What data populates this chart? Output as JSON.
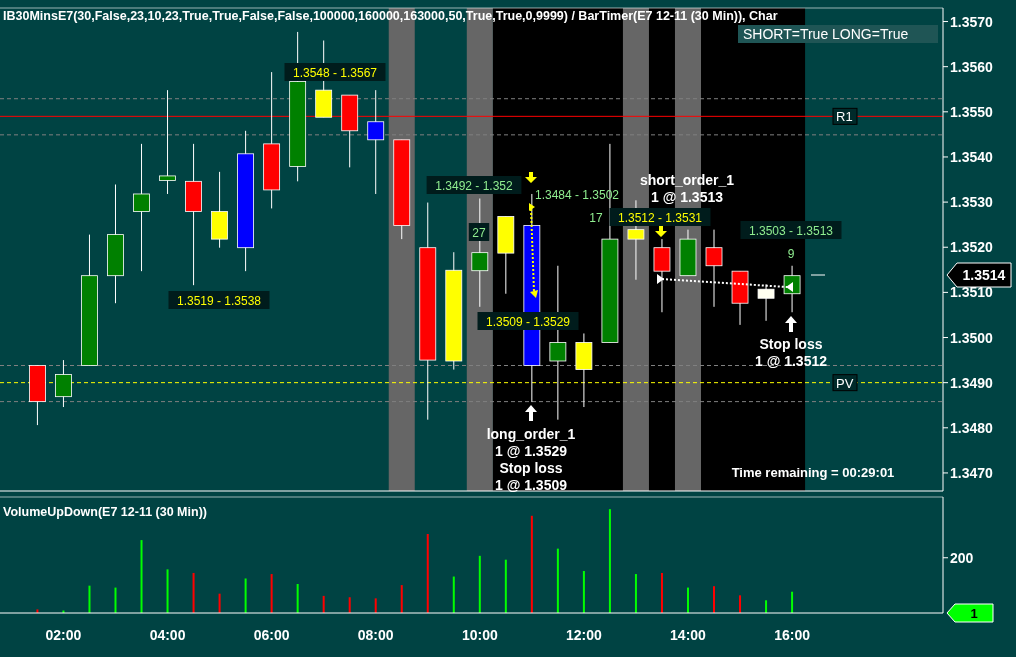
{
  "chart_data": [
    {
      "type": "candlestick",
      "title": "IB30MinsE7(30,False,23,10,23,True,True,False,False,100000,160000,163000,50,True,True,0,9999)  /  BarTimer(E7  12-11  (30 Min)),  Char",
      "x": [
        1.5,
        2,
        2.5,
        3,
        3.5,
        4,
        4.5,
        5,
        5.5,
        6,
        6.5,
        7,
        7.5,
        8,
        8.5,
        9,
        9.5,
        10,
        10.5,
        11,
        11.5,
        12,
        12.5,
        13,
        13.5,
        14,
        14.5,
        15,
        15.5,
        16
      ],
      "ohlc": [
        [
          1.34938,
          1.34938,
          1.34806,
          1.34858
        ],
        [
          1.34869,
          1.3495,
          1.34846,
          1.34918
        ],
        [
          1.34938,
          1.35228,
          1.34938,
          1.35137
        ],
        [
          1.35137,
          1.35339,
          1.35076,
          1.35228
        ],
        [
          1.35279,
          1.35429,
          1.35147,
          1.35318
        ],
        [
          1.35348,
          1.35548,
          1.35318,
          1.35358
        ],
        [
          1.35346,
          1.35429,
          1.35116,
          1.35279
        ],
        [
          1.35279,
          1.35367,
          1.35199,
          1.35218
        ],
        [
          1.35199,
          1.35458,
          1.35147,
          1.35407
        ],
        [
          1.35429,
          1.35588,
          1.35286,
          1.35327
        ],
        [
          1.35379,
          1.35677,
          1.35346,
          1.35567
        ],
        [
          1.35488,
          1.35658,
          1.35488,
          1.35548
        ],
        [
          1.35537,
          1.35537,
          1.35377,
          1.35458
        ],
        [
          1.35478,
          1.35548,
          1.35318,
          1.35438
        ],
        [
          1.35438,
          1.35438,
          1.35218,
          1.35248
        ],
        [
          1.35199,
          1.35299,
          1.34818,
          1.3495
        ],
        [
          1.35149,
          1.35189,
          1.34929,
          1.34948
        ],
        [
          1.35148,
          1.35308,
          1.35068,
          1.35188
        ],
        [
          1.35187,
          1.35268,
          1.35097,
          1.35268
        ],
        [
          1.35248,
          1.35318,
          1.34857,
          1.34938
        ],
        [
          1.34948,
          1.35159,
          1.34818,
          1.34989
        ],
        [
          1.34989,
          1.35009,
          1.34846,
          1.34929
        ],
        [
          1.34989,
          1.35429,
          1.34989,
          1.35218
        ],
        [
          1.35218,
          1.35304,
          1.35128,
          1.35239
        ],
        [
          1.35199,
          1.35218,
          1.35056,
          1.35147
        ],
        [
          1.35137,
          1.35239,
          1.35137,
          1.35218
        ],
        [
          1.35199,
          1.35239,
          1.35068,
          1.35159
        ],
        [
          1.35147,
          1.35147,
          1.35028,
          1.35076
        ],
        [
          1.35087,
          1.35118,
          1.35037,
          1.35107
        ],
        [
          1.35097,
          1.35159,
          1.35056,
          1.35137
        ]
      ],
      "colors": [
        "#ff0000",
        "#008000",
        "#008000",
        "#008000",
        "#008000",
        "#008000",
        "#ff0000",
        "#ffff00",
        "#0000ff",
        "#ff0000",
        "#008000",
        "#ffff00",
        "#ff0000",
        "#0000ff",
        "#ff0000",
        "#ff0000",
        "#ffff00",
        "#008000",
        "#ffff00",
        "#0000ff",
        "#008000",
        "#ffff00",
        "#008000",
        "#ffff00",
        "#ff0000",
        "#008000",
        "#ff0000",
        "#ff0000",
        "#fffff0",
        "#008000"
      ],
      "xlim": [
        0.8,
        18.9
      ],
      "ylim": [
        1.3466,
        1.3573
      ],
      "yticks": [
        {
          "value": 1.347,
          "label": "1.3470"
        },
        {
          "value": 1.348,
          "label": "1.3480"
        },
        {
          "value": 1.349,
          "label": "1.3490"
        },
        {
          "value": 1.35,
          "label": "1.3500"
        },
        {
          "value": 1.351,
          "label": "1.3510"
        },
        {
          "value": 1.352,
          "label": "1.3520"
        },
        {
          "value": 1.353,
          "label": "1.3530"
        },
        {
          "value": 1.354,
          "label": "1.3540"
        },
        {
          "value": 1.355,
          "label": "1.3550"
        },
        {
          "value": 1.356,
          "label": "1.3560"
        },
        {
          "value": 1.357,
          "label": "1.3570"
        }
      ],
      "tick_labels": "y",
      "bands": [
        {
          "axis": "x",
          "from": 10.25,
          "to": 16.25,
          "color": "#000000"
        },
        {
          "axis": "x",
          "from": 8.25,
          "to": 8.75,
          "color": "#666666"
        },
        {
          "axis": "x",
          "from": 9.75,
          "to": 10.25,
          "color": "#666666"
        },
        {
          "axis": "x",
          "from": 12.75,
          "to": 13.25,
          "color": "#666666"
        },
        {
          "axis": "x",
          "from": 13.75,
          "to": 14.25,
          "color": "#666666"
        }
      ],
      "ref_lines": [
        {
          "axis": "y",
          "value": 1.35529,
          "color": "#808080",
          "line_style": "dashed"
        },
        {
          "axis": "y",
          "value": 1.3549,
          "label": "R1",
          "color": "#ff0000",
          "line_style": "solid"
        },
        {
          "axis": "y",
          "value": 1.35449,
          "color": "#808080",
          "line_style": "dashed"
        },
        {
          "axis": "y",
          "value": 1.34938,
          "color": "#808080",
          "line_style": "dashed"
        },
        {
          "axis": "y",
          "value": 1.349,
          "label": "PV",
          "color": "#ffff00",
          "line_style": "dashed"
        },
        {
          "axis": "y",
          "value": 1.34858,
          "color": "#808080",
          "line_style": "dashed"
        }
      ],
      "annotations": [
        "1.3548 - 1.3567",
        "1.3519 - 1.3538",
        "1.3492 - 1.352",
        "27",
        "1.3509 - 1.3529",
        "1.3484 - 1.3502",
        "17",
        "short_order_1",
        "1 @ 1.3513",
        "1.3512 - 1.3531",
        "1.3503 - 1.3513",
        "9",
        "long_order_1",
        "1 @ 1.3529",
        "Stop loss",
        "1 @ 1.3509",
        "Stop loss",
        "1 @ 1.3512",
        "1.3514",
        "SHORT=True LONG=True",
        "Time remaining = 00:29:01"
      ]
    },
    {
      "type": "bar",
      "title": "VolumeUpDown(E7 12-11 (30 Min))",
      "x": [
        1.5,
        2,
        2.5,
        3,
        3.5,
        4,
        4.5,
        5,
        5.5,
        6,
        6.5,
        7,
        7.5,
        8,
        8.5,
        9,
        9.5,
        10,
        10.5,
        11,
        11.5,
        12,
        12.5,
        13,
        13.5,
        14,
        14.5,
        15,
        15.5,
        16
      ],
      "values": [
        13,
        9,
        99,
        92,
        264,
        158,
        145,
        70,
        125,
        141,
        105,
        62,
        57,
        53,
        101,
        286,
        132,
        207,
        193,
        352,
        233,
        152,
        376,
        141,
        145,
        92,
        97,
        64,
        46,
        77
      ],
      "colors": [
        "#ff0000",
        "#00ff00",
        "#00ff00",
        "#00ff00",
        "#00ff00",
        "#00ff00",
        "#ff0000",
        "#ff0000",
        "#00ff00",
        "#ff0000",
        "#00ff00",
        "#ff0000",
        "#ff0000",
        "#ff0000",
        "#ff0000",
        "#ff0000",
        "#00ff00",
        "#00ff00",
        "#00ff00",
        "#ff0000",
        "#00ff00",
        "#00ff00",
        "#00ff00",
        "#00ff00",
        "#ff0000",
        "#00ff00",
        "#ff0000",
        "#ff0000",
        "#00ff00",
        "#00ff00"
      ],
      "xlim": [
        0.8,
        18.9
      ],
      "ylim": [
        0,
        420
      ],
      "yticks": [
        200
      ],
      "xticks": [
        {
          "value": 2,
          "label": "02:00"
        },
        {
          "value": 4,
          "label": "04:00"
        },
        {
          "value": 6,
          "label": "06:00"
        },
        {
          "value": 8,
          "label": "08:00"
        },
        {
          "value": 10,
          "label": "10:00"
        },
        {
          "value": 12,
          "label": "12:00"
        },
        {
          "value": 14,
          "label": "14:00"
        },
        {
          "value": 16,
          "label": "16:00"
        }
      ],
      "annotations": [
        "1"
      ]
    }
  ]
}
